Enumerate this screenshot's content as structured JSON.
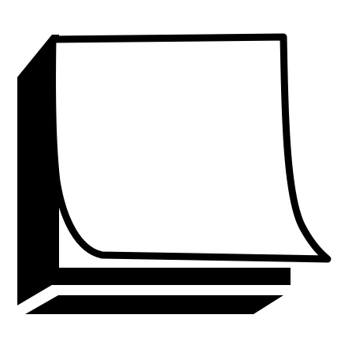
{
  "icon": {
    "name": "sticky-note-pad-icon",
    "colors": {
      "ink": "#000000",
      "paper": "#ffffff",
      "background": "#ffffff"
    }
  }
}
